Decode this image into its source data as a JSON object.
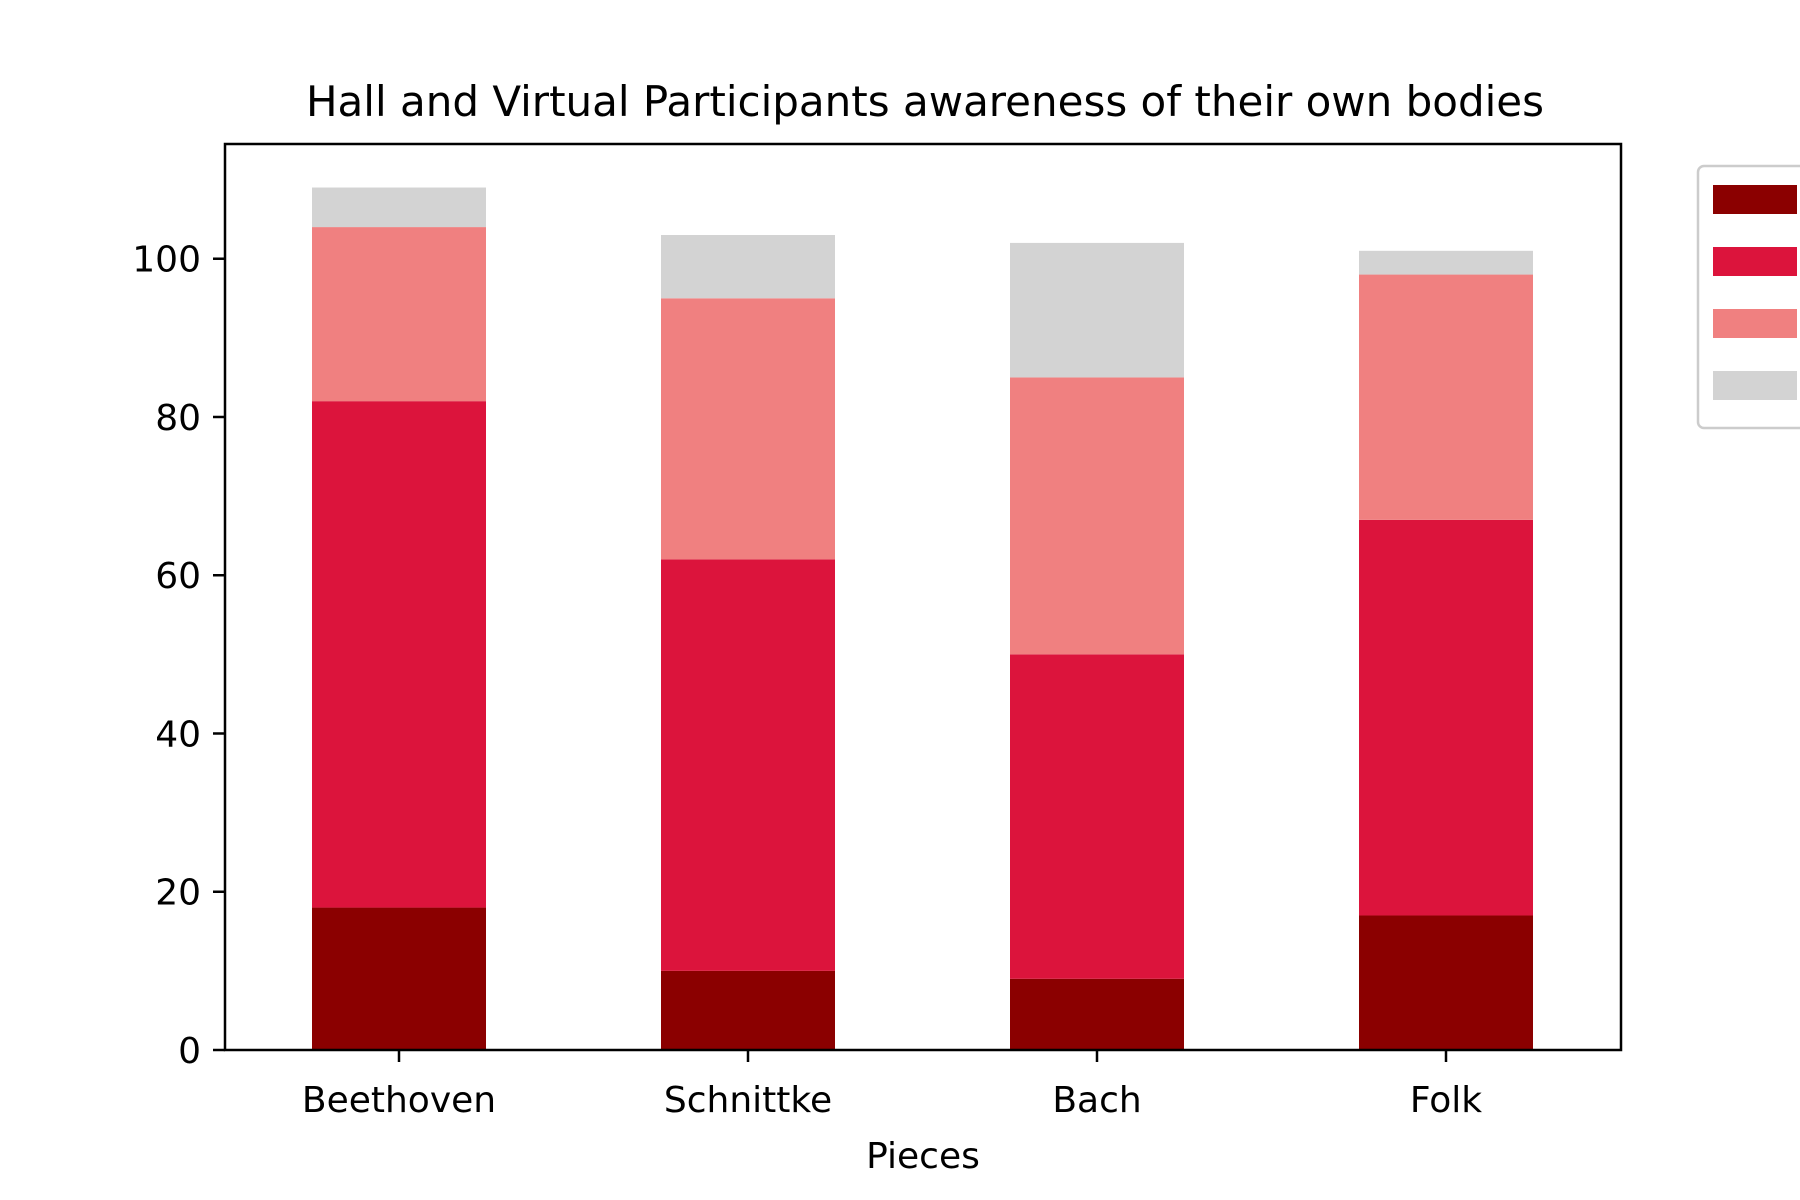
{
  "chart_data": {
    "type": "bar",
    "stacked": true,
    "title": "Hall and Virtual Participants awareness of their own bodies",
    "xlabel": "Pieces",
    "ylabel": "",
    "categories": [
      "Beethoven",
      "Schnittke",
      "Bach",
      "Folk"
    ],
    "ylim": [
      0,
      114.5
    ],
    "yticks": [
      0,
      20,
      40,
      60,
      80,
      100
    ],
    "grid": false,
    "legend_position": "outside-top-right",
    "series": [
      {
        "values": [
          18,
          10,
          9,
          17
        ],
        "color": "#8b0000"
      },
      {
        "values": [
          64,
          52,
          41,
          50
        ],
        "color": "#dc143c"
      },
      {
        "values": [
          22,
          33,
          35,
          31
        ],
        "color": "#f08080"
      },
      {
        "values": [
          5,
          8,
          17,
          3
        ],
        "color": "#d3d3d3"
      }
    ]
  }
}
